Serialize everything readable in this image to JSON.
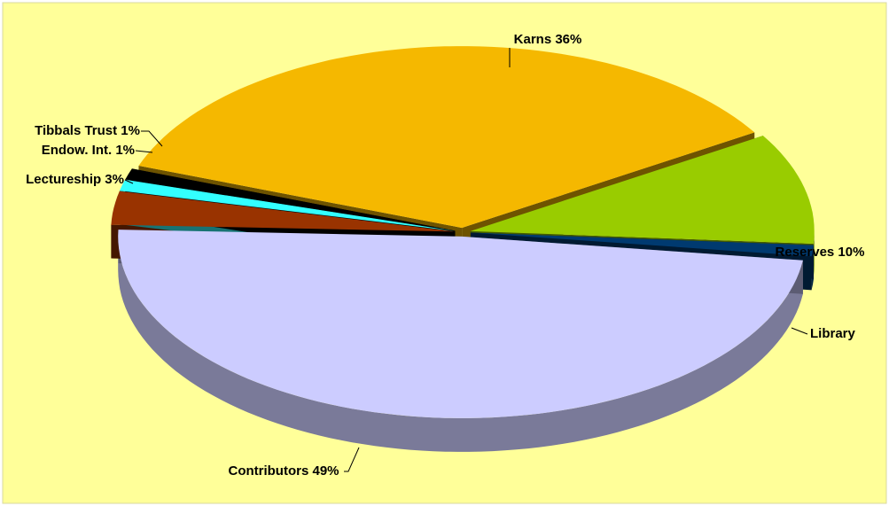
{
  "chart_data": {
    "type": "pie3d",
    "categories": [
      "Karns 36%",
      "Reserves 10%",
      "Library",
      "Contributors 49%",
      "Lectureship 3%",
      "Endow. Int. 1%",
      "Tibbals Trust 1%"
    ],
    "values": [
      36,
      10,
      1,
      49,
      3,
      1,
      1
    ],
    "colors": [
      "#f5b800",
      "#99cc00",
      "#003a70",
      "#ccccff",
      "#993300",
      "#33ffff",
      "#000000"
    ]
  }
}
